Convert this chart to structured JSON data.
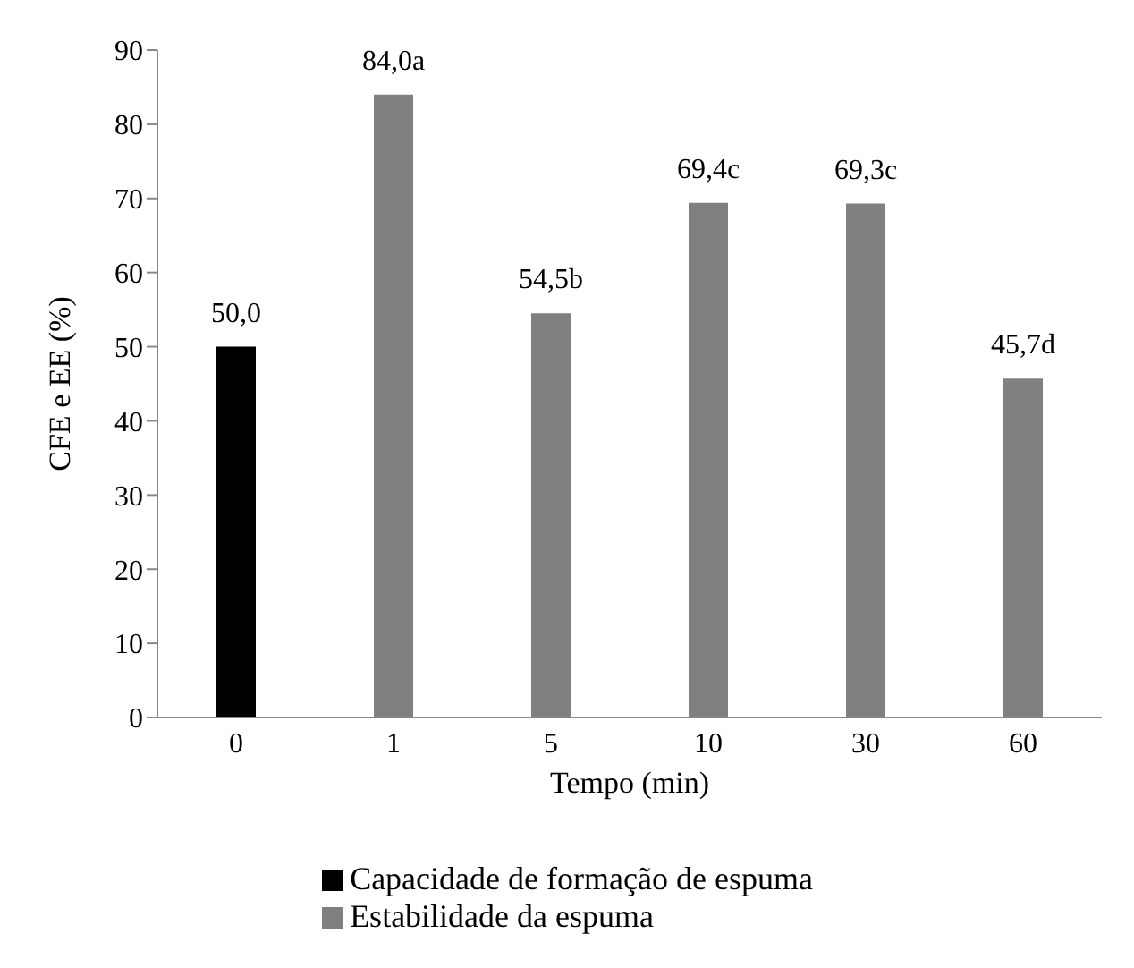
{
  "chart_data": {
    "type": "bar",
    "xlabel": "Tempo (min)",
    "ylabel": "CFE e EE (%)",
    "categories": [
      "0",
      "1",
      "5",
      "10",
      "30",
      "60"
    ],
    "series": [
      {
        "name": "Capacidade de formação de espuma",
        "color": "#000000",
        "values": [
          50.0,
          null,
          null,
          null,
          null,
          null
        ],
        "value_labels": [
          "50,0",
          null,
          null,
          null,
          null,
          null
        ]
      },
      {
        "name": "Estabilidade da espuma",
        "color": "#808080",
        "values": [
          null,
          84.0,
          54.5,
          69.4,
          69.3,
          45.7
        ],
        "value_labels": [
          null,
          "84,0a",
          "54,5b",
          "69,4c",
          "69,3c",
          "45,7d"
        ]
      }
    ],
    "ylim": [
      0,
      90
    ],
    "yticks": [
      0,
      10,
      20,
      30,
      40,
      50,
      60,
      70,
      80,
      90
    ],
    "grid": false,
    "legend": "bottom"
  }
}
